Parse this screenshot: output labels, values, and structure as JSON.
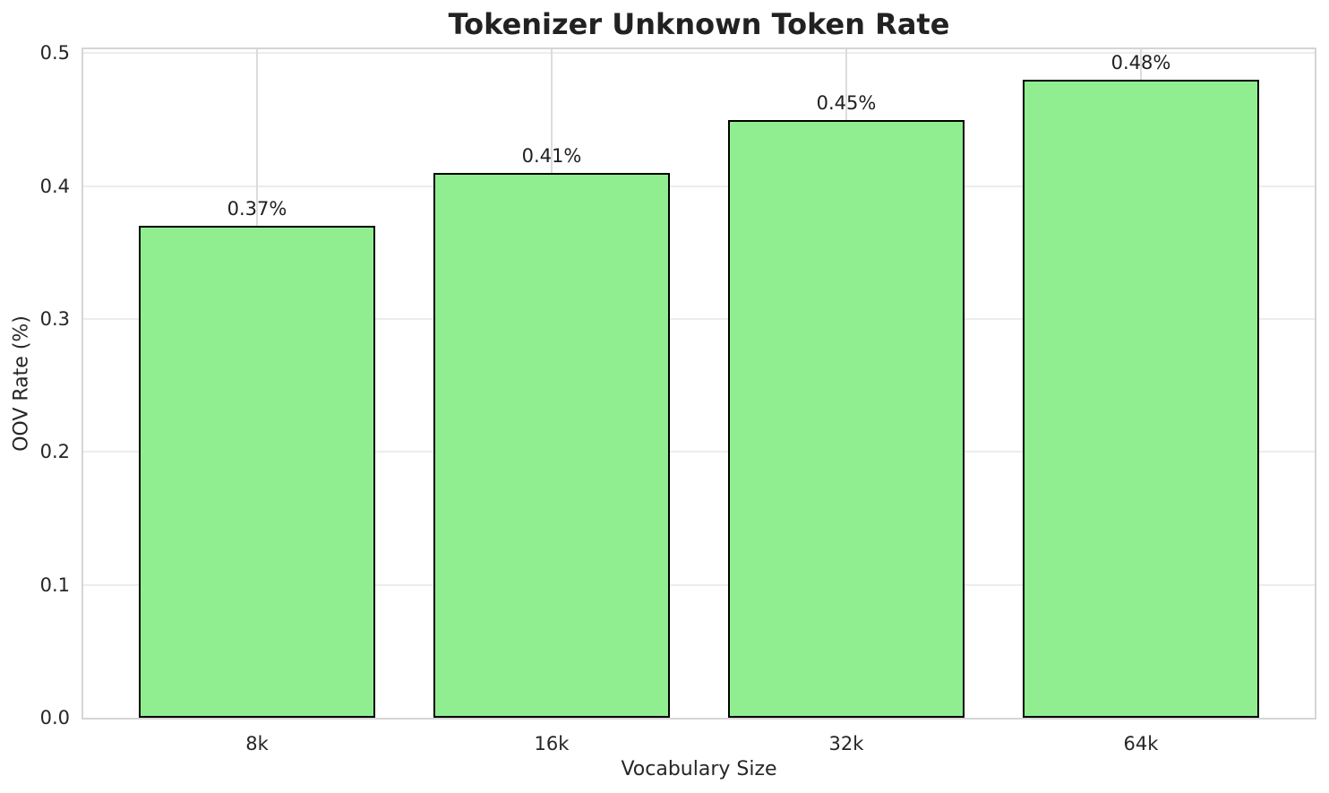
{
  "chart_data": {
    "type": "bar",
    "title": "Tokenizer Unknown Token Rate",
    "xlabel": "Vocabulary Size",
    "ylabel": "OOV Rate (%)",
    "categories": [
      "8k",
      "16k",
      "32k",
      "64k"
    ],
    "values": [
      0.37,
      0.41,
      0.45,
      0.48
    ],
    "bar_labels": [
      "0.37%",
      "0.41%",
      "0.45%",
      "0.48%"
    ],
    "yticks": [
      0.0,
      0.1,
      0.2,
      0.3,
      0.4,
      0.5
    ],
    "ytick_labels": [
      "0.0",
      "0.1",
      "0.2",
      "0.3",
      "0.4",
      "0.5"
    ],
    "ylim": [
      0,
      0.5
    ],
    "grid": true,
    "legend": "none",
    "colors": {
      "bar_fill": "#90EE90",
      "bar_edge": "#000000",
      "grid_h": "#ececec",
      "grid_v": "#dcdcdc",
      "spine": "#d5d5d5",
      "text": "#262626",
      "title": "#222222",
      "background": "#ffffff"
    }
  }
}
